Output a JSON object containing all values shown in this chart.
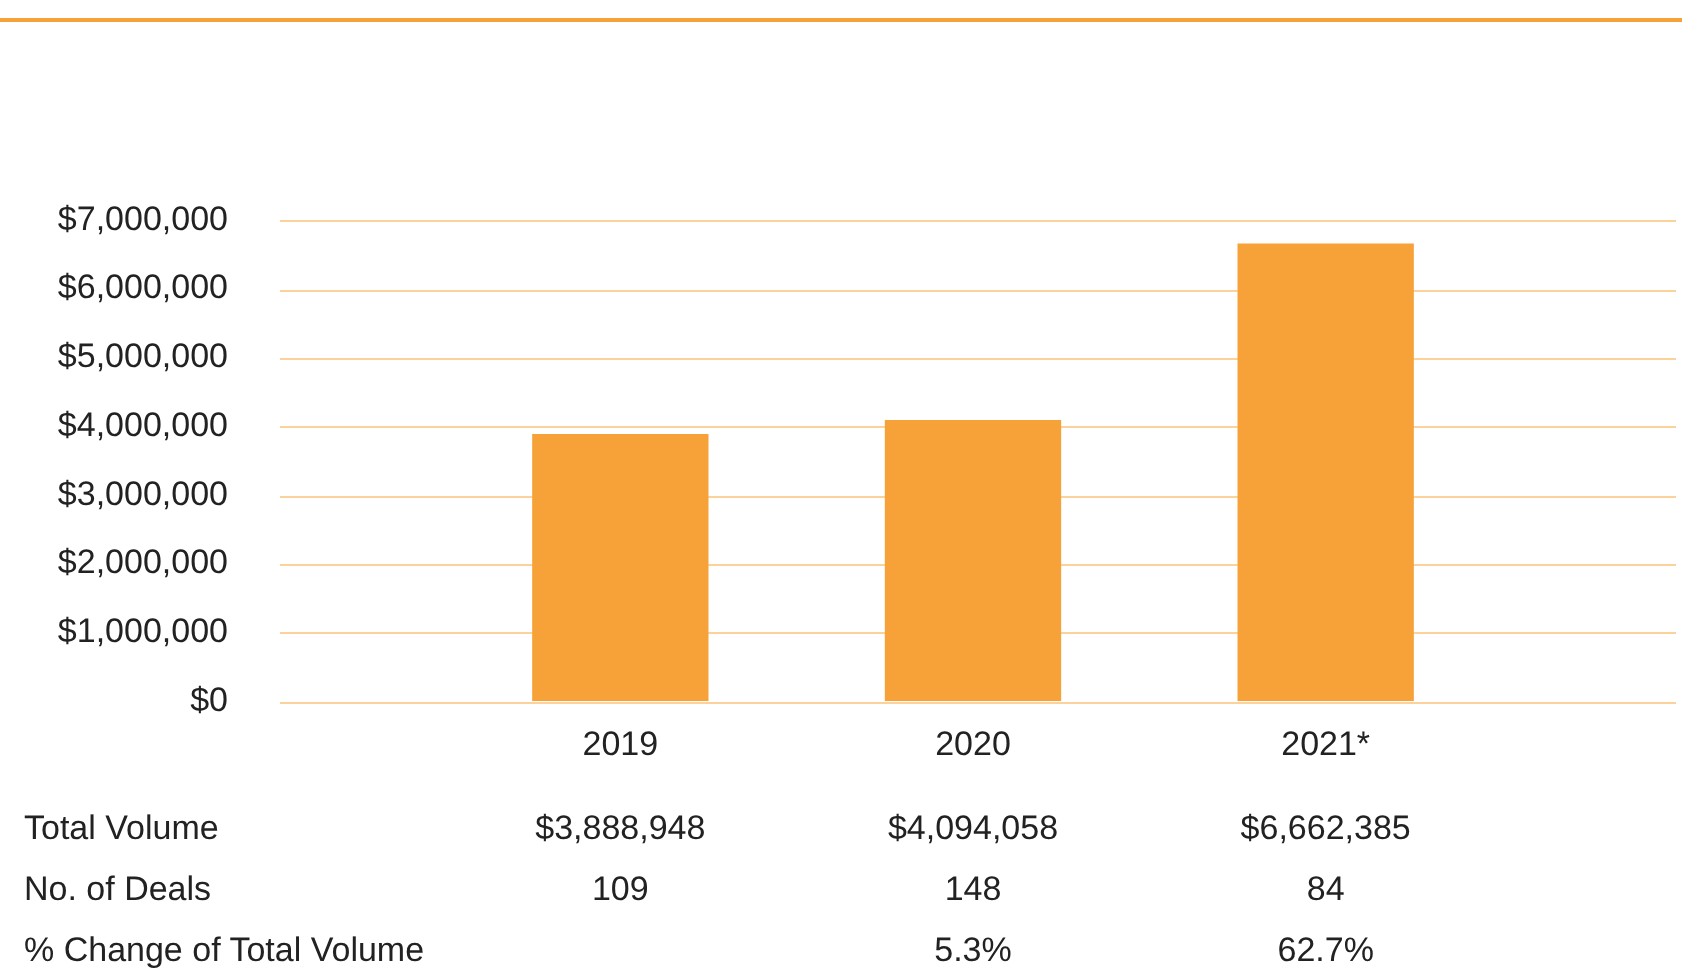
{
  "chart_data": {
    "type": "bar",
    "categories": [
      "2019",
      "2020",
      "2021*"
    ],
    "series": [
      {
        "color": "#f7a239",
        "values": [
          3888948,
          4094058,
          6662385
        ],
        "value_labels": [
          "$3,888,948",
          "$4,094,058",
          "$6,662,385"
        ]
      }
    ],
    "ylim": [
      0,
      7000000
    ],
    "yticks": [
      {
        "value": 0,
        "label": "$0"
      },
      {
        "value": 1000000,
        "label": "$1,000,000"
      },
      {
        "value": 2000000,
        "label": "$2,000,000"
      },
      {
        "value": 3000000,
        "label": "$3,000,000"
      },
      {
        "value": 4000000,
        "label": "$4,000,000"
      },
      {
        "value": 5000000,
        "label": "$5,000,000"
      },
      {
        "value": 6000000,
        "label": "$6,000,000"
      },
      {
        "value": 7000000,
        "label": "$7,000,000"
      }
    ],
    "grid": "y",
    "legend": false,
    "annotations": [
      "Total Volume",
      "No. of Deals",
      "109",
      "148",
      "84",
      "% Change of Total Volume",
      "5.3%",
      "62.7%"
    ]
  }
}
